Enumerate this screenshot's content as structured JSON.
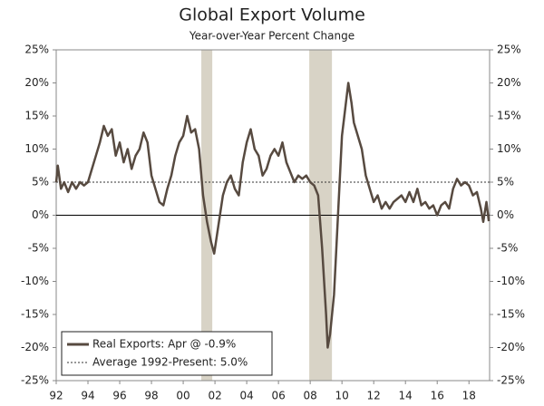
{
  "chart_data": {
    "type": "line",
    "title": "Global Export Volume",
    "subtitle": "Year-over-Year Percent Change",
    "legend": "lower left",
    "xlim": [
      1992,
      2019.3
    ],
    "xticks": [
      {
        "value": 1992,
        "label": "92"
      },
      {
        "value": 1994,
        "label": "94"
      },
      {
        "value": 1996,
        "label": "96"
      },
      {
        "value": 1998,
        "label": "98"
      },
      {
        "value": 2000,
        "label": "00"
      },
      {
        "value": 2002,
        "label": "02"
      },
      {
        "value": 2004,
        "label": "04"
      },
      {
        "value": 2006,
        "label": "06"
      },
      {
        "value": 2008,
        "label": "08"
      },
      {
        "value": 2010,
        "label": "10"
      },
      {
        "value": 2012,
        "label": "12"
      },
      {
        "value": 2014,
        "label": "14"
      },
      {
        "value": 2016,
        "label": "16"
      },
      {
        "value": 2018,
        "label": "18"
      }
    ],
    "ylim": [
      -25,
      25
    ],
    "yticks": [
      {
        "value": 25,
        "label": "25%"
      },
      {
        "value": 20,
        "label": "20%"
      },
      {
        "value": 15,
        "label": "15%"
      },
      {
        "value": 10,
        "label": "10%"
      },
      {
        "value": 5,
        "label": "5%"
      },
      {
        "value": 0,
        "label": "0%"
      },
      {
        "value": -5,
        "label": "-5%"
      },
      {
        "value": -10,
        "label": "-10%"
      },
      {
        "value": -15,
        "label": "-15%"
      },
      {
        "value": -20,
        "label": "-20%"
      },
      {
        "value": -25,
        "label": "-25%"
      }
    ],
    "y2lim": [
      -25,
      25
    ],
    "y2ticks": [
      {
        "value": 25,
        "label": "25%"
      },
      {
        "value": 20,
        "label": "20%"
      },
      {
        "value": 15,
        "label": "15%"
      },
      {
        "value": 10,
        "label": "10%"
      },
      {
        "value": 5,
        "label": "5%"
      },
      {
        "value": 0,
        "label": "0%"
      },
      {
        "value": -5,
        "label": "-5%"
      },
      {
        "value": -10,
        "label": "-10%"
      },
      {
        "value": -15,
        "label": "-15%"
      },
      {
        "value": -20,
        "label": "-20%"
      },
      {
        "value": -25,
        "label": "-25%"
      }
    ],
    "shaded_ranges": [
      [
        2001.14,
        2001.83
      ],
      [
        2007.94,
        2009.37
      ]
    ],
    "shade_color": "#d8d3c6",
    "reference_line": {
      "value": 5.0,
      "name": "Average 1992-Present: 5.0%",
      "color": "#333333",
      "style": "dashed"
    },
    "x": [
      1992.0,
      1992.1,
      1992.3,
      1992.5,
      1992.75,
      1993.0,
      1993.25,
      1993.5,
      1993.75,
      1994.0,
      1994.25,
      1994.5,
      1994.75,
      1995.0,
      1995.25,
      1995.5,
      1995.75,
      1996.0,
      1996.25,
      1996.5,
      1996.75,
      1997.0,
      1997.25,
      1997.5,
      1997.75,
      1998.0,
      1998.25,
      1998.5,
      1998.75,
      1999.0,
      1999.25,
      1999.5,
      1999.75,
      2000.0,
      2000.25,
      2000.5,
      2000.75,
      2001.0,
      2001.25,
      2001.5,
      2001.75,
      2001.95,
      2002.25,
      2002.5,
      2002.75,
      2003.0,
      2003.25,
      2003.5,
      2003.75,
      2004.0,
      2004.25,
      2004.5,
      2004.75,
      2005.0,
      2005.25,
      2005.5,
      2005.75,
      2006.0,
      2006.25,
      2006.5,
      2006.75,
      2007.0,
      2007.25,
      2007.5,
      2007.75,
      2008.0,
      2008.25,
      2008.5,
      2008.75,
      2009.0,
      2009.1,
      2009.25,
      2009.5,
      2009.75,
      2010.0,
      2010.25,
      2010.4,
      2010.6,
      2010.75,
      2011.0,
      2011.25,
      2011.5,
      2011.75,
      2012.0,
      2012.25,
      2012.5,
      2012.75,
      2013.0,
      2013.25,
      2013.5,
      2013.75,
      2014.0,
      2014.25,
      2014.5,
      2014.75,
      2015.0,
      2015.25,
      2015.5,
      2015.75,
      2016.0,
      2016.25,
      2016.5,
      2016.75,
      2017.0,
      2017.25,
      2017.5,
      2017.75,
      2018.0,
      2018.25,
      2018.5,
      2018.75,
      2018.9,
      2019.1,
      2019.25
    ],
    "series": [
      {
        "name": "Real Exports: Apr @ -0.9%",
        "color": "#574a40",
        "values": [
          5,
          7.5,
          4,
          5,
          3.5,
          5,
          4,
          5,
          4.5,
          5,
          7,
          9,
          11,
          13.5,
          12,
          13,
          9,
          11,
          8,
          10,
          7,
          9,
          10,
          12.5,
          11,
          6,
          4,
          2,
          1.5,
          4,
          6,
          9,
          11,
          12,
          15,
          12.5,
          13,
          10,
          3,
          -1,
          -4,
          -5.8,
          -1,
          3,
          5,
          6,
          4,
          3,
          8,
          11,
          13,
          10,
          9,
          6,
          7,
          9,
          10,
          9,
          11,
          8,
          6.5,
          5,
          6,
          5.5,
          6,
          5,
          4.5,
          3,
          -5,
          -15,
          -20,
          -18,
          -12,
          0,
          12,
          17,
          20,
          17,
          14,
          12,
          10,
          6,
          4,
          2,
          3,
          1,
          2,
          1,
          2,
          2.5,
          3,
          2,
          3.5,
          2,
          4,
          1.5,
          2,
          1,
          1.5,
          0,
          1.5,
          2,
          1,
          4,
          5.5,
          4.5,
          5,
          4.5,
          3,
          3.5,
          1,
          -1,
          2,
          -0.9
        ]
      }
    ]
  }
}
